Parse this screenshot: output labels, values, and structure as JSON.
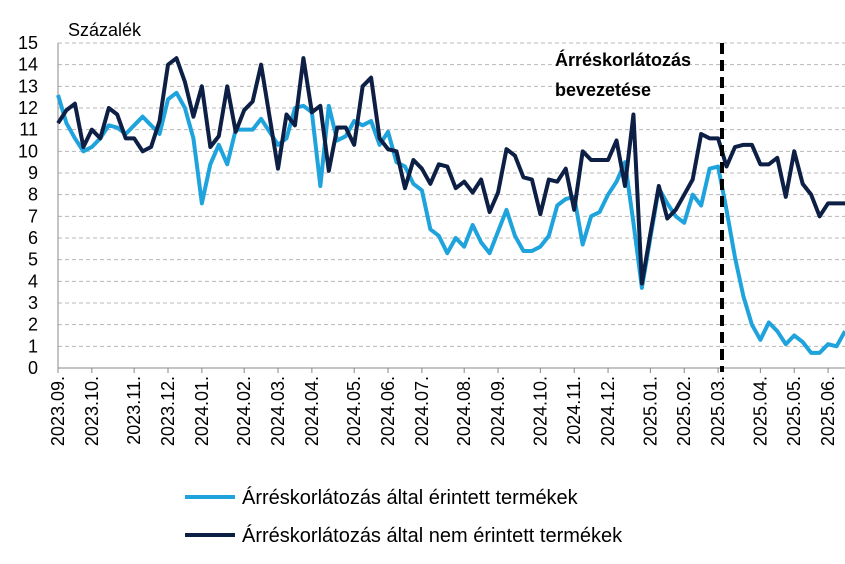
{
  "chart_data": {
    "type": "line",
    "y_label": "Százalék",
    "annotation": [
      "Árréskorlátozás",
      "bevezetése"
    ],
    "categories": [
      "2023.09.",
      null,
      null,
      null,
      "2023.10.",
      null,
      null,
      null,
      null,
      "2023.11.",
      null,
      null,
      null,
      "2023.12.",
      null,
      null,
      null,
      "2024.01.",
      null,
      null,
      null,
      null,
      "2024.02.",
      null,
      null,
      null,
      "2024.03.",
      null,
      null,
      null,
      "2024.04.",
      null,
      null,
      null,
      null,
      "2024.05.",
      null,
      null,
      null,
      "2024.06.",
      null,
      null,
      null,
      "2024.07.",
      null,
      null,
      null,
      null,
      "2024.08.",
      null,
      null,
      null,
      "2024.09.",
      null,
      null,
      null,
      null,
      "2024.10.",
      null,
      null,
      null,
      "2024.11.",
      null,
      null,
      null,
      "2024.12.",
      null,
      null,
      null,
      null,
      "2025.01.",
      null,
      null,
      null,
      "2025.02.",
      null,
      null,
      null,
      "2025.03.",
      null,
      null,
      null,
      null,
      "2025.04.",
      null,
      null,
      null,
      "2025.05.",
      null,
      null,
      null,
      "2025.06.",
      null,
      null
    ],
    "series": [
      {
        "name": "Árréskorlátozás által érintett termékek",
        "color": "#1fa3dc",
        "values": [
          12.6,
          11.3,
          10.6,
          10.0,
          10.2,
          10.6,
          11.2,
          11.1,
          10.8,
          11.2,
          11.6,
          11.2,
          10.8,
          12.4,
          12.7,
          12.0,
          10.6,
          7.6,
          9.4,
          10.3,
          9.4,
          11.0,
          11.0,
          11.0,
          11.5,
          10.9,
          10.3,
          10.6,
          12.0,
          12.1,
          11.8,
          8.4,
          12.1,
          10.5,
          10.7,
          11.4,
          11.2,
          11.4,
          10.3,
          10.9,
          9.5,
          9.3,
          8.5,
          8.2,
          6.4,
          6.1,
          5.3,
          6.0,
          5.6,
          6.6,
          5.8,
          5.3,
          6.3,
          7.3,
          6.1,
          5.4,
          5.4,
          5.6,
          6.1,
          7.5,
          7.8,
          7.9,
          5.7,
          7.0,
          7.2,
          8.0,
          8.6,
          9.5,
          6.7,
          3.7,
          6.0,
          8.3,
          7.6,
          7.0,
          6.7,
          8.0,
          7.5,
          9.2,
          9.3,
          7.3,
          5.1,
          3.3,
          2.0,
          1.3,
          2.1,
          1.7,
          1.1,
          1.5,
          1.2,
          0.7,
          0.7,
          1.1,
          1.0,
          1.7
        ]
      },
      {
        "name": "Árréskorlátozás által nem érintett termékek",
        "color": "#0d1f45",
        "values": [
          11.3,
          11.9,
          12.2,
          10.2,
          11.0,
          10.6,
          12.0,
          11.7,
          10.6,
          10.6,
          10.0,
          10.2,
          11.4,
          14.0,
          14.3,
          13.2,
          11.6,
          13.0,
          10.2,
          10.7,
          13.0,
          10.9,
          11.9,
          12.3,
          14.0,
          11.6,
          9.2,
          11.7,
          11.2,
          14.3,
          11.8,
          12.1,
          9.1,
          11.1,
          11.1,
          10.3,
          13.0,
          13.4,
          10.6,
          10.1,
          10.0,
          8.3,
          9.6,
          9.2,
          8.5,
          9.4,
          9.3,
          8.3,
          8.6,
          8.1,
          8.7,
          7.2,
          8.1,
          10.1,
          9.8,
          8.8,
          8.7,
          7.1,
          8.7,
          8.6,
          9.2,
          7.3,
          10.0,
          9.6,
          9.6,
          9.6,
          10.5,
          8.4,
          11.7,
          3.9,
          6.2,
          8.4,
          6.9,
          7.3,
          8.0,
          8.7,
          10.8,
          10.6,
          10.6,
          9.3,
          10.2,
          10.3,
          10.3,
          9.4,
          9.4,
          9.7,
          7.9,
          10.0,
          8.5,
          8.0,
          7.0,
          7.6,
          7.6,
          7.6
        ]
      }
    ],
    "ylim": [
      0,
      15
    ],
    "yticks": [
      0,
      1,
      2,
      3,
      4,
      5,
      6,
      7,
      8,
      9,
      10,
      11,
      12,
      13,
      14,
      15
    ],
    "grid": true
  }
}
